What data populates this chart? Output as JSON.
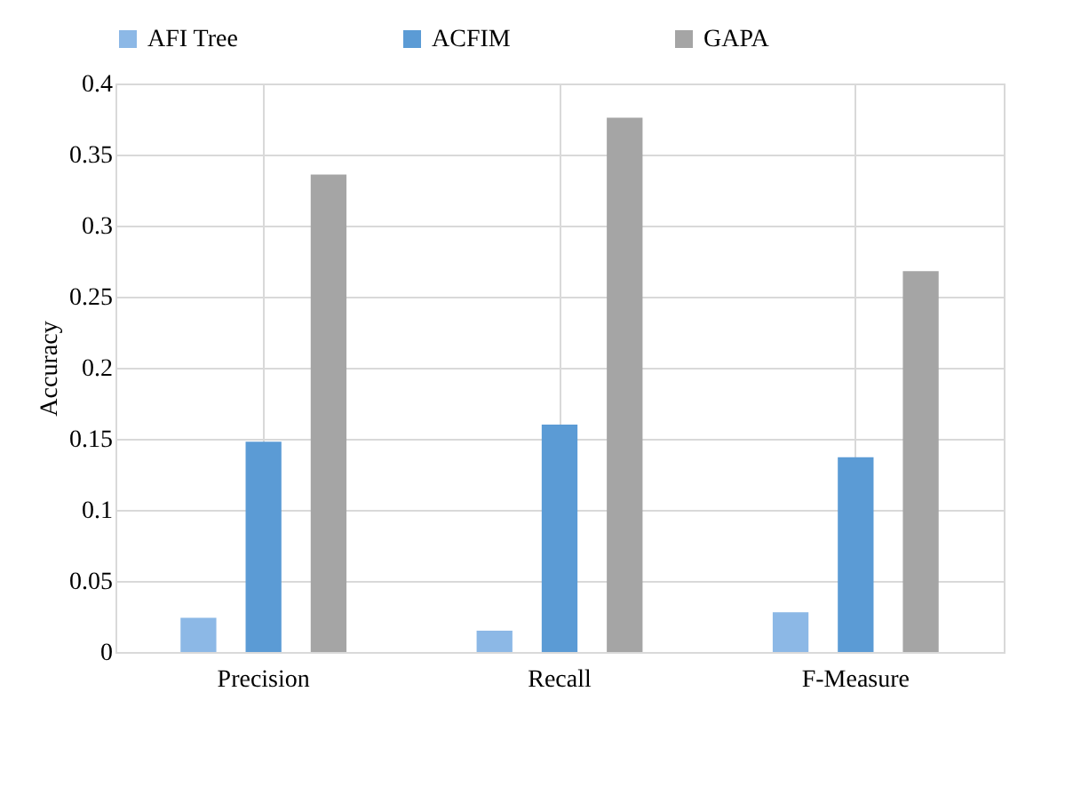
{
  "chart_data": {
    "type": "bar",
    "ylabel": "Accuracy",
    "categories": [
      "Precision",
      "Recall",
      "F-Measure"
    ],
    "series": [
      {
        "name": "AFI Tree",
        "color": "#8cb8e6",
        "values": [
          0.024,
          0.015,
          0.028
        ]
      },
      {
        "name": "ACFIM",
        "color": "#5b9bd5",
        "values": [
          0.148,
          0.16,
          0.137
        ]
      },
      {
        "name": "GAPA",
        "color": "#a5a5a5",
        "values": [
          0.336,
          0.376,
          0.268
        ]
      }
    ],
    "ylim": [
      0,
      0.4
    ],
    "yticks": [
      0,
      0.05,
      0.1,
      0.15,
      0.2,
      0.25,
      0.3,
      0.35,
      0.4
    ],
    "grid": true,
    "legend": "top"
  }
}
